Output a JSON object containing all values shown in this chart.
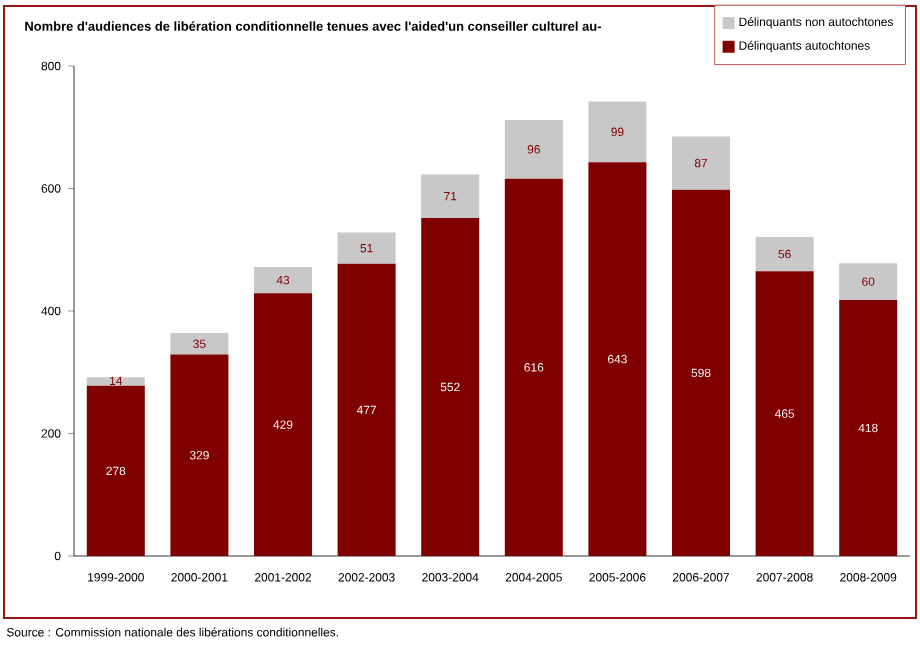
{
  "chart_data": {
    "type": "bar",
    "stacked": true,
    "title": "Nombre d'audiences de libération conditionnelle tenues avec l'aided'un conseiller culturel au-",
    "categories": [
      "1999-2000",
      "2000-2001",
      "2001-2002",
      "2002-2003",
      "2003-2004",
      "2004-2005",
      "2005-2006",
      "2006-2007",
      "2007-2008",
      "2008-2009"
    ],
    "series": [
      {
        "name": "Délinquants autochtones",
        "color": "#800000",
        "values": [
          278,
          329,
          429,
          477,
          552,
          616,
          643,
          598,
          465,
          418
        ]
      },
      {
        "name": "Délinquants non autochtones",
        "color": "#c8c8c8",
        "values": [
          14,
          35,
          43,
          51,
          71,
          96,
          99,
          87,
          56,
          60
        ]
      }
    ],
    "ylim": [
      0,
      800
    ],
    "yticks": [
      0,
      200,
      400,
      600,
      800
    ],
    "grid": false,
    "legend": "top right",
    "data_labels": true,
    "annotations": [
      "Source : Commission nationale des libérations conditionnelles."
    ]
  }
}
